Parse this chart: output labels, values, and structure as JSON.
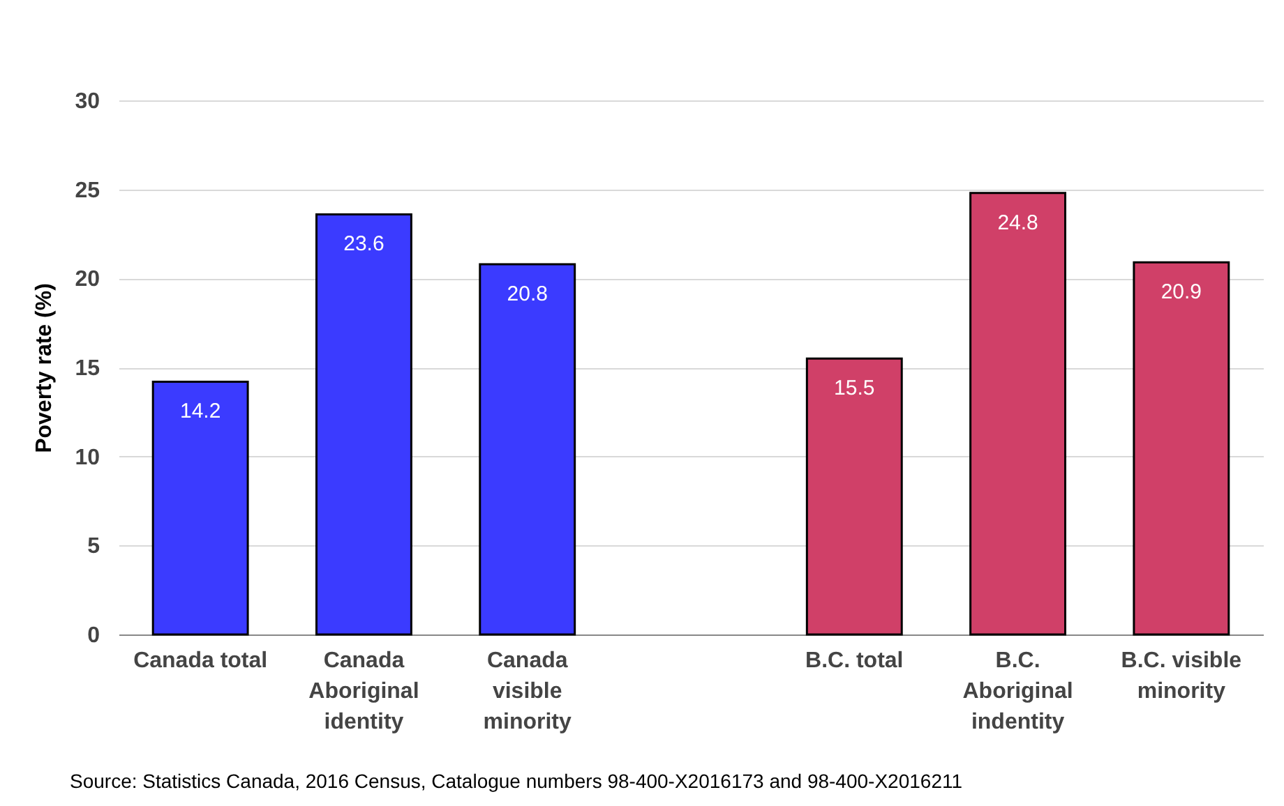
{
  "chart_data": {
    "type": "bar",
    "ylabel": "Poverty rate (%)",
    "categories": [
      "Canada total",
      "Canada Aboriginal identity",
      "Canada visible minority",
      null,
      "B.C. total",
      "B.C. Aboriginal indentity",
      "B.C. visible minority"
    ],
    "values": [
      14.2,
      23.6,
      20.8,
      null,
      15.5,
      24.8,
      20.9
    ],
    "colors": [
      "#3b3bff",
      "#3b3bff",
      "#3b3bff",
      "#3b3bff",
      "#d04068",
      "#d04068",
      "#d04068"
    ],
    "ylim": [
      0,
      30
    ],
    "yticks": [
      0,
      5,
      10,
      15,
      20,
      25,
      30
    ],
    "grid": "y",
    "data_labels": true,
    "annotations": [
      "Source: Statistics Canada, 2016 Census, Catalogue numbers 98-400-X2016173 and 98-400-X2016211"
    ]
  }
}
